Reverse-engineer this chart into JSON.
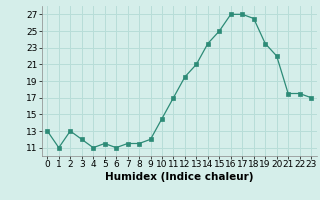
{
  "x": [
    0,
    1,
    2,
    3,
    4,
    5,
    6,
    7,
    8,
    9,
    10,
    11,
    12,
    13,
    14,
    15,
    16,
    17,
    18,
    19,
    20,
    21,
    22,
    23
  ],
  "y": [
    13,
    11,
    13,
    12,
    11,
    11.5,
    11,
    11.5,
    11.5,
    12,
    14.5,
    17,
    19.5,
    21,
    23.5,
    25,
    27,
    27,
    26.5,
    23.5,
    22,
    17.5,
    17.5,
    17
  ],
  "line_color": "#2d8b77",
  "marker_color": "#2d8b77",
  "bg_color": "#d5eeea",
  "grid_color": "#b8ddd8",
  "xlabel": "Humidex (Indice chaleur)",
  "ylim": [
    10,
    28
  ],
  "yticks": [
    11,
    13,
    15,
    17,
    19,
    21,
    23,
    25,
    27
  ],
  "xtick_labels": [
    "0",
    "1",
    "2",
    "3",
    "4",
    "5",
    "6",
    "7",
    "8",
    "9",
    "10",
    "11",
    "12",
    "13",
    "14",
    "15",
    "16",
    "17",
    "18",
    "19",
    "20",
    "21",
    "22",
    "23"
  ],
  "xlabel_fontsize": 7.5,
  "tick_fontsize": 6.5
}
